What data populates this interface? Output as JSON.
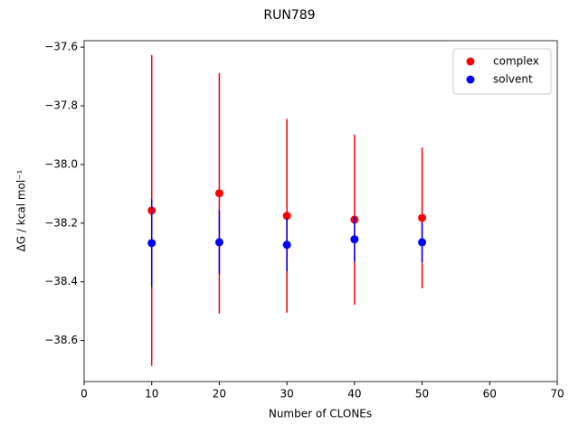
{
  "chart_data": {
    "type": "errorbar-scatter",
    "title": "RUN789",
    "x_label": "Number of CLONEs",
    "y_label": "ΔG / kcal mol⁻¹",
    "x": [
      10,
      20,
      30,
      40,
      50
    ],
    "series": [
      {
        "name": "complex",
        "color": "#ff0000",
        "values": [
          -38.157,
          -38.098,
          -38.175,
          -38.188,
          -38.182
        ],
        "errors": [
          0.53,
          0.41,
          0.33,
          0.29,
          0.24
        ]
      },
      {
        "name": "solvent",
        "color": "#0000ff",
        "values": [
          -38.268,
          -38.265,
          -38.274,
          -38.255,
          -38.265
        ],
        "errors": [
          0.15,
          0.11,
          0.09,
          0.077,
          0.068
        ]
      }
    ],
    "xlim": [
      0,
      70
    ],
    "xticks": [
      0,
      10,
      20,
      30,
      40,
      50,
      60,
      70
    ],
    "ylim": [
      -38.74,
      -37.578
    ],
    "yticks": [
      {
        "value": -38.6,
        "label": "−38.6"
      },
      {
        "value": -38.4,
        "label": "−38.4"
      },
      {
        "value": -38.2,
        "label": "−38.2"
      },
      {
        "value": -38.0,
        "label": "−38.0"
      },
      {
        "value": -37.8,
        "label": "−37.8"
      },
      {
        "value": -37.6,
        "label": "−37.6"
      }
    ],
    "legend": "upper right",
    "grid": false
  }
}
